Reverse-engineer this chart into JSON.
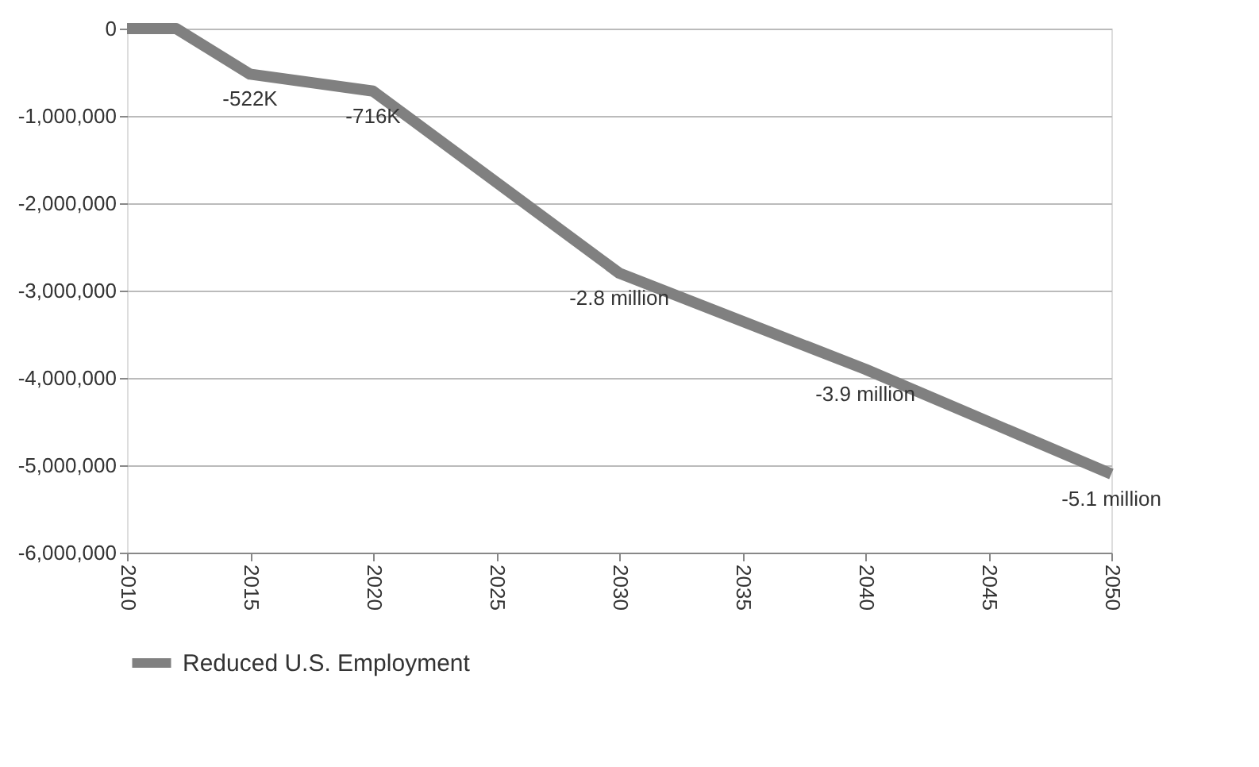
{
  "chart_data": {
    "type": "line",
    "x": [
      2010,
      2012,
      2015,
      2020,
      2030,
      2040,
      2050
    ],
    "series": [
      {
        "name": "Reduced U.S. Employment",
        "color": "#808080",
        "values": [
          0,
          0,
          -522000,
          -716000,
          -2800000,
          -3900000,
          -5100000
        ]
      }
    ],
    "annotations": [
      {
        "text": "-522K",
        "x": 2015,
        "y": -522000
      },
      {
        "text": "-716K",
        "x": 2020,
        "y": -716000
      },
      {
        "text": "-2.8 million",
        "x": 2030,
        "y": -2800000
      },
      {
        "text": "-3.9 million",
        "x": 2040,
        "y": -3900000
      },
      {
        "text": "-5.1 million",
        "x": 2050,
        "y": -5100000
      }
    ],
    "xlim": [
      2010,
      2050
    ],
    "xticks": [
      2010,
      2015,
      2020,
      2025,
      2030,
      2035,
      2040,
      2045,
      2050
    ],
    "ylim": [
      -6000000,
      0
    ],
    "yticks": [
      {
        "value": -6000000,
        "label": "-6,000,000"
      },
      {
        "value": -5000000,
        "label": "-5,000,000"
      },
      {
        "value": -4000000,
        "label": "-4,000,000"
      },
      {
        "value": -3000000,
        "label": "-3,000,000"
      },
      {
        "value": -2000000,
        "label": "-2,000,000"
      },
      {
        "value": -1000000,
        "label": "-1,000,000"
      },
      0
    ],
    "grid": "y",
    "legend": "bottom",
    "marker": "none",
    "line_style": "solid"
  }
}
